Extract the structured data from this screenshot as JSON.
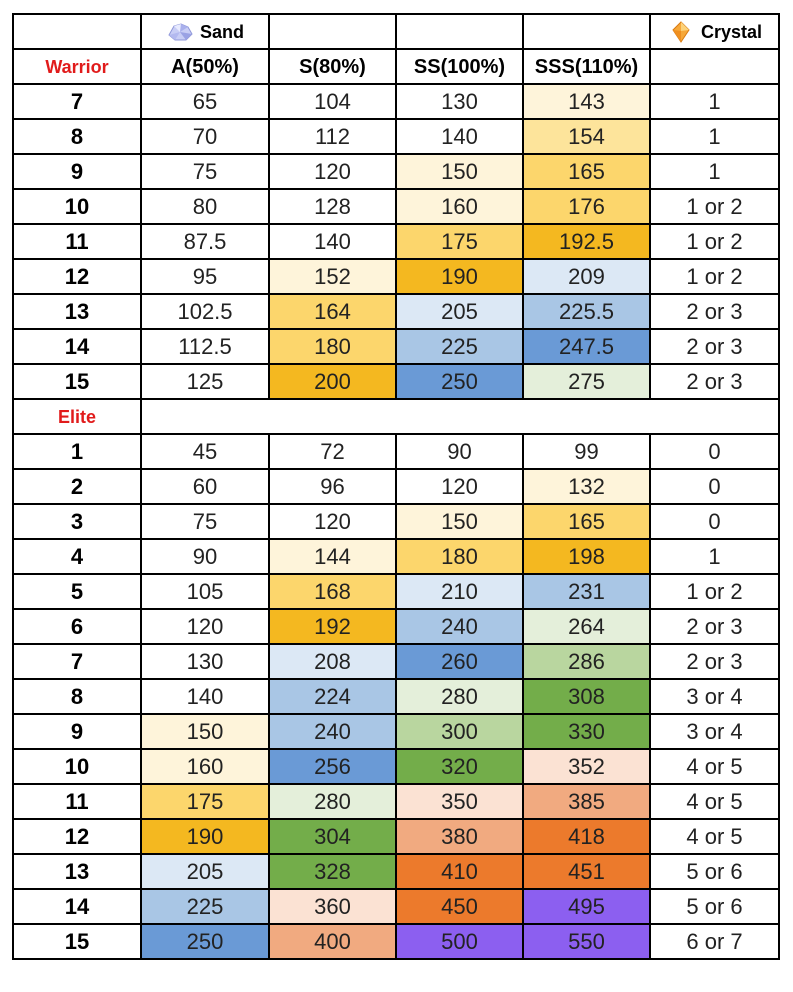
{
  "header": {
    "sand_label": "Sand",
    "crystal_label": "Crystal",
    "sand_icon": "sand-crystal-icon",
    "crystal_icon": "orange-crystal-icon",
    "columns": [
      "A(50%)",
      "S(80%)",
      "SS(100%)",
      "SSS(110%)"
    ]
  },
  "warrior": {
    "label": "Warrior",
    "rows": [
      {
        "level": "7",
        "a": "65",
        "s": "104",
        "ss": "130",
        "sss": "143",
        "crystal": "1",
        "colors": [
          "",
          "",
          "",
          "c-y1"
        ]
      },
      {
        "level": "8",
        "a": "70",
        "s": "112",
        "ss": "140",
        "sss": "154",
        "crystal": "1",
        "colors": [
          "",
          "",
          "",
          "c-y2"
        ]
      },
      {
        "level": "9",
        "a": "75",
        "s": "120",
        "ss": "150",
        "sss": "165",
        "crystal": "1",
        "colors": [
          "",
          "",
          "c-y1",
          "c-y3"
        ]
      },
      {
        "level": "10",
        "a": "80",
        "s": "128",
        "ss": "160",
        "sss": "176",
        "crystal": "1 or 2",
        "colors": [
          "",
          "",
          "c-y1",
          "c-y3"
        ]
      },
      {
        "level": "11",
        "a": "87.5",
        "s": "140",
        "ss": "175",
        "sss": "192.5",
        "crystal": "1 or 2",
        "colors": [
          "",
          "",
          "c-y3",
          "c-y4"
        ]
      },
      {
        "level": "12",
        "a": "95",
        "s": "152",
        "ss": "190",
        "sss": "209",
        "crystal": "1 or 2",
        "colors": [
          "",
          "c-y1",
          "c-y4",
          "c-b1"
        ]
      },
      {
        "level": "13",
        "a": "102.5",
        "s": "164",
        "ss": "205",
        "sss": "225.5",
        "crystal": "2 or 3",
        "colors": [
          "",
          "c-y3",
          "c-b1",
          "c-b2"
        ]
      },
      {
        "level": "14",
        "a": "112.5",
        "s": "180",
        "ss": "225",
        "sss": "247.5",
        "crystal": "2 or 3",
        "colors": [
          "",
          "c-y3",
          "c-b2",
          "c-b3"
        ]
      },
      {
        "level": "15",
        "a": "125",
        "s": "200",
        "ss": "250",
        "sss": "275",
        "crystal": "2 or 3",
        "colors": [
          "",
          "c-y4",
          "c-b3",
          "c-g1"
        ]
      }
    ]
  },
  "elite": {
    "label": "Elite",
    "rows": [
      {
        "level": "1",
        "a": "45",
        "s": "72",
        "ss": "90",
        "sss": "99",
        "crystal": "0",
        "colors": [
          "",
          "",
          "",
          ""
        ]
      },
      {
        "level": "2",
        "a": "60",
        "s": "96",
        "ss": "120",
        "sss": "132",
        "crystal": "0",
        "colors": [
          "",
          "",
          "",
          "c-y1"
        ]
      },
      {
        "level": "3",
        "a": "75",
        "s": "120",
        "ss": "150",
        "sss": "165",
        "crystal": "0",
        "colors": [
          "",
          "",
          "c-y1",
          "c-y3"
        ]
      },
      {
        "level": "4",
        "a": "90",
        "s": "144",
        "ss": "180",
        "sss": "198",
        "crystal": "1",
        "colors": [
          "",
          "c-y1",
          "c-y3",
          "c-y4"
        ]
      },
      {
        "level": "5",
        "a": "105",
        "s": "168",
        "ss": "210",
        "sss": "231",
        "crystal": "1 or 2",
        "colors": [
          "",
          "c-y3",
          "c-b1",
          "c-b2"
        ]
      },
      {
        "level": "6",
        "a": "120",
        "s": "192",
        "ss": "240",
        "sss": "264",
        "crystal": "2 or 3",
        "colors": [
          "",
          "c-y4",
          "c-b2",
          "c-g1"
        ]
      },
      {
        "level": "7",
        "a": "130",
        "s": "208",
        "ss": "260",
        "sss": "286",
        "crystal": "2 or 3",
        "colors": [
          "",
          "c-b1",
          "c-b3",
          "c-g2"
        ]
      },
      {
        "level": "8",
        "a": "140",
        "s": "224",
        "ss": "280",
        "sss": "308",
        "crystal": "3 or 4",
        "colors": [
          "",
          "c-b2",
          "c-g1",
          "c-g3"
        ]
      },
      {
        "level": "9",
        "a": "150",
        "s": "240",
        "ss": "300",
        "sss": "330",
        "crystal": "3 or 4",
        "colors": [
          "c-y1",
          "c-b2",
          "c-g2",
          "c-g3"
        ]
      },
      {
        "level": "10",
        "a": "160",
        "s": "256",
        "ss": "320",
        "sss": "352",
        "crystal": "4 or 5",
        "colors": [
          "c-y1",
          "c-b3",
          "c-g3",
          "c-o1"
        ]
      },
      {
        "level": "11",
        "a": "175",
        "s": "280",
        "ss": "350",
        "sss": "385",
        "crystal": "4 or 5",
        "colors": [
          "c-y3",
          "c-g1",
          "c-o1",
          "c-o2"
        ]
      },
      {
        "level": "12",
        "a": "190",
        "s": "304",
        "ss": "380",
        "sss": "418",
        "crystal": "4 or 5",
        "colors": [
          "c-y4",
          "c-g3",
          "c-o2",
          "c-o3"
        ]
      },
      {
        "level": "13",
        "a": "205",
        "s": "328",
        "ss": "410",
        "sss": "451",
        "crystal": "5 or 6",
        "colors": [
          "c-b1",
          "c-g3",
          "c-o3",
          "c-o3"
        ]
      },
      {
        "level": "14",
        "a": "225",
        "s": "360",
        "ss": "450",
        "sss": "495",
        "crystal": "5 or 6",
        "colors": [
          "c-b2",
          "c-o1",
          "c-o3",
          "c-p3"
        ]
      },
      {
        "level": "15",
        "a": "250",
        "s": "400",
        "ss": "500",
        "sss": "550",
        "crystal": "6 or 7",
        "colors": [
          "c-b3",
          "c-o2",
          "c-p3",
          "c-p3"
        ]
      }
    ]
  }
}
